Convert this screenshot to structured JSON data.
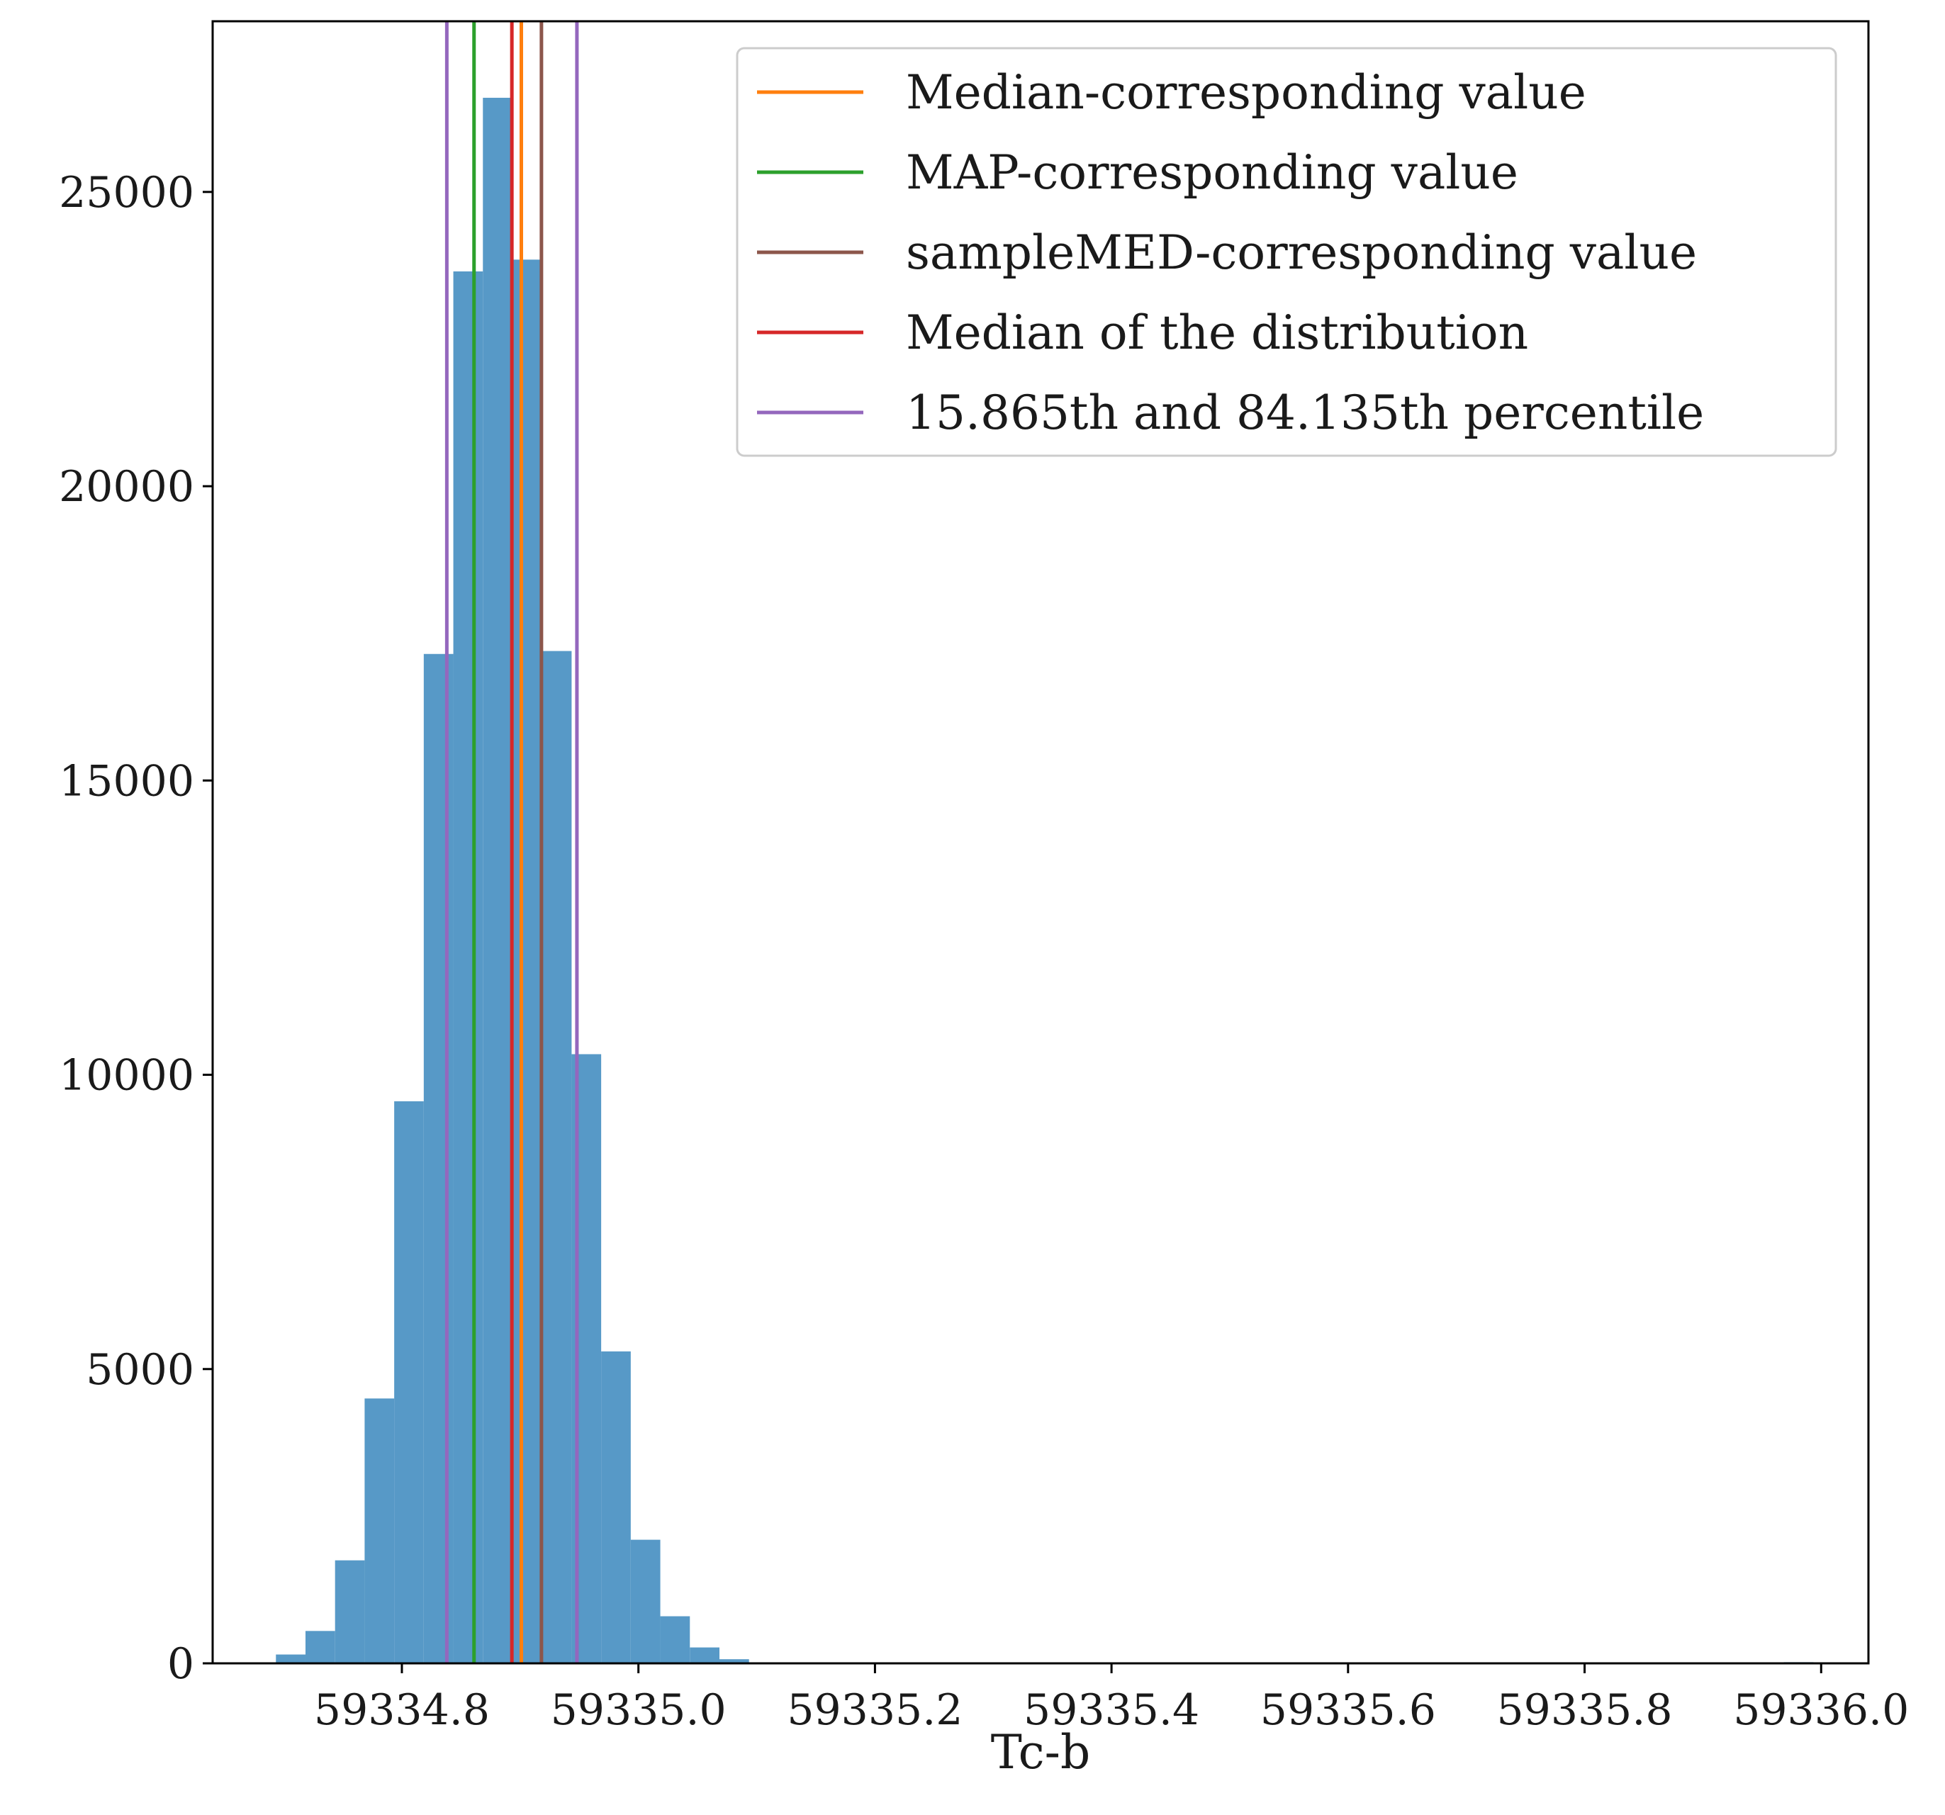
{
  "chart_data": {
    "type": "bar",
    "xlabel": "Tc-b",
    "ylabel": "",
    "xlim": [
      59334.64,
      59336.04
    ],
    "ylim": [
      0,
      27900
    ],
    "x_ticks": [
      59334.8,
      59335.0,
      59335.2,
      59335.4,
      59335.6,
      59335.8,
      59336.0
    ],
    "x_tick_labels": [
      "59334.8",
      "59335.0",
      "59335.2",
      "59335.4",
      "59335.6",
      "59335.8",
      "59336.0"
    ],
    "y_ticks": [
      0,
      5000,
      10000,
      15000,
      20000,
      25000
    ],
    "y_tick_labels": [
      "0",
      "5000",
      "10000",
      "15000",
      "20000",
      "25000"
    ],
    "bar_color": "#5799c7",
    "bin_width": 0.025,
    "bins": [
      {
        "x": 59334.706,
        "count": 150
      },
      {
        "x": 59334.731,
        "count": 550
      },
      {
        "x": 59334.756,
        "count": 1750
      },
      {
        "x": 59334.781,
        "count": 4500
      },
      {
        "x": 59334.806,
        "count": 9550
      },
      {
        "x": 59334.831,
        "count": 17150
      },
      {
        "x": 59334.856,
        "count": 23650
      },
      {
        "x": 59334.881,
        "count": 26600
      },
      {
        "x": 59334.906,
        "count": 23850
      },
      {
        "x": 59334.931,
        "count": 17200
      },
      {
        "x": 59334.956,
        "count": 10350
      },
      {
        "x": 59334.981,
        "count": 5300
      },
      {
        "x": 59335.006,
        "count": 2100
      },
      {
        "x": 59335.031,
        "count": 800
      },
      {
        "x": 59335.056,
        "count": 270
      },
      {
        "x": 59335.081,
        "count": 70
      },
      {
        "x": 59335.106,
        "count": 15
      },
      {
        "x": 59335.981,
        "count": 20
      }
    ],
    "vertical_lines": [
      {
        "name": "Median-corresponding value",
        "color": "#ff7f0e",
        "x": 59334.901
      },
      {
        "name": "MAP-corresponding value",
        "color": "#2ca02c",
        "x": 59334.861
      },
      {
        "name": "sampleMED-corresponding value",
        "color": "#8c564b",
        "x": 59334.918
      },
      {
        "name": "Median of the distribution",
        "color": "#d62728",
        "x": 59334.893
      },
      {
        "name": "15.865th and 84.135th percentile",
        "color": "#9467bd",
        "x": 59334.838
      },
      {
        "name": "15.865th and 84.135th percentile",
        "color": "#9467bd",
        "x": 59334.948
      }
    ],
    "legend": {
      "position": "upper right",
      "entries": [
        {
          "label": "Median-corresponding value",
          "color": "#ff7f0e"
        },
        {
          "label": "MAP-corresponding value",
          "color": "#2ca02c"
        },
        {
          "label": "sampleMED-corresponding value",
          "color": "#8c564b"
        },
        {
          "label": "Median of the distribution",
          "color": "#d62728"
        },
        {
          "label": "15.865th and 84.135th percentile",
          "color": "#9467bd"
        }
      ]
    }
  }
}
